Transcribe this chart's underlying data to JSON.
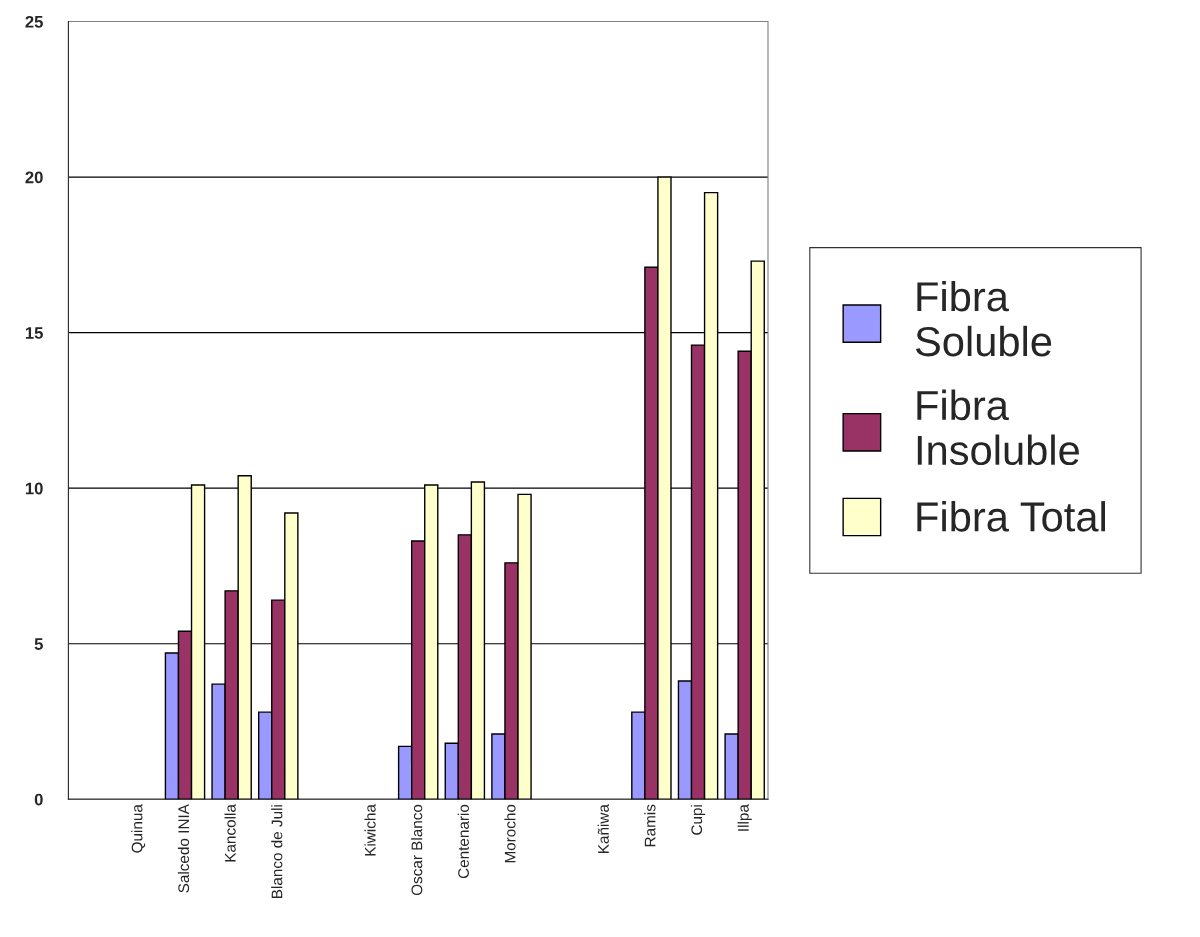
{
  "chart_data": {
    "type": "bar",
    "categories": [
      null,
      "Quinua",
      "Salcedo INIA",
      "Kancolla",
      "Blanco de Juli",
      null,
      "Kiwicha",
      "Oscar Blanco",
      "Centenario",
      "Morocho",
      null,
      "Kañiwa",
      "Ramis",
      "Cupi",
      "Illpa"
    ],
    "series": [
      {
        "name": "Fibra\nSoluble",
        "color": "#9999ff",
        "values": [
          null,
          null,
          4.7,
          3.7,
          2.8,
          null,
          null,
          1.7,
          1.8,
          2.1,
          null,
          null,
          2.8,
          3.8,
          2.1
        ]
      },
      {
        "name": "Fibra\nInsoluble",
        "color": "#993366",
        "values": [
          null,
          null,
          5.4,
          6.7,
          6.4,
          null,
          null,
          8.3,
          8.5,
          7.6,
          null,
          null,
          17.1,
          14.6,
          14.4
        ]
      },
      {
        "name": "Fibra Total",
        "color": "#ffffcc",
        "values": [
          null,
          null,
          10.1,
          10.4,
          9.2,
          null,
          null,
          10.1,
          10.2,
          9.8,
          null,
          null,
          20.0,
          19.5,
          17.3
        ]
      }
    ],
    "ylim": [
      0,
      25
    ],
    "yticks": [
      0,
      5,
      10,
      15,
      20,
      25
    ],
    "grid": "y",
    "legend": "right"
  }
}
